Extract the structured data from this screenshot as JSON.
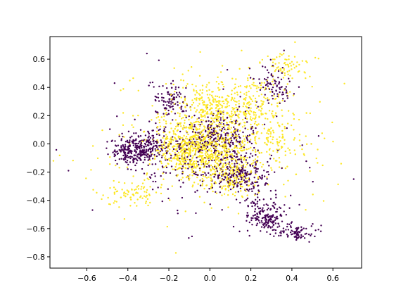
{
  "chart_data": {
    "type": "scatter",
    "title": "",
    "xlabel": "",
    "ylabel": "",
    "xlim": [
      -0.78,
      0.74
    ],
    "ylim": [
      -0.88,
      0.76
    ],
    "xticks": [
      -0.6,
      -0.4,
      -0.2,
      0.0,
      0.2,
      0.4,
      0.6
    ],
    "yticks": [
      -0.8,
      -0.6,
      -0.4,
      -0.2,
      0.0,
      0.2,
      0.4,
      0.6
    ],
    "xtick_labels": [
      "−0.6",
      "−0.4",
      "−0.2",
      "0.0",
      "0.2",
      "0.4",
      "0.6"
    ],
    "ytick_labels": [
      "−0.8",
      "−0.6",
      "−0.4",
      "−0.2",
      "0.0",
      "0.2",
      "0.4",
      "0.6"
    ],
    "grid": false,
    "legend": false,
    "colors": {
      "purple": "#440154",
      "yellow": "#fde725",
      "axis": "#000000",
      "background": "#ffffff"
    },
    "point_count_by_color": {
      "purple": 1460,
      "yellow": 1860
    },
    "series": [
      {
        "color": "#440154",
        "clusters": [
          {
            "center": [
              -0.37,
              -0.05
            ],
            "spread": [
              0.06,
              0.05
            ],
            "count": 240
          },
          {
            "center": [
              -0.28,
              0.0
            ],
            "spread": [
              0.05,
              0.06
            ],
            "count": 100
          },
          {
            "center": [
              -0.2,
              0.3
            ],
            "spread": [
              0.04,
              0.06
            ],
            "count": 90
          },
          {
            "center": [
              0.05,
              0.05
            ],
            "spread": [
              0.08,
              0.08
            ],
            "count": 200
          },
          {
            "center": [
              0.15,
              -0.22
            ],
            "spread": [
              0.08,
              0.07
            ],
            "count": 220
          },
          {
            "center": [
              0.28,
              -0.52
            ],
            "spread": [
              0.05,
              0.06
            ],
            "count": 180
          },
          {
            "center": [
              0.43,
              -0.63
            ],
            "spread": [
              0.05,
              0.03
            ],
            "count": 80
          },
          {
            "center": [
              0.32,
              0.42
            ],
            "spread": [
              0.05,
              0.08
            ],
            "count": 80
          },
          {
            "center": [
              -0.05,
              -0.1
            ],
            "spread": [
              0.14,
              0.15
            ],
            "count": 190
          },
          {
            "center": [
              0.0,
              0.0
            ],
            "spread": [
              0.3,
              0.3
            ],
            "count": 80
          }
        ]
      },
      {
        "color": "#fde725",
        "clusters": [
          {
            "center": [
              -0.02,
              -0.05
            ],
            "spread": [
              0.1,
              0.09
            ],
            "count": 560
          },
          {
            "center": [
              0.0,
              0.25
            ],
            "spread": [
              0.09,
              0.1
            ],
            "count": 300
          },
          {
            "center": [
              -0.15,
              0.0
            ],
            "spread": [
              0.07,
              0.1
            ],
            "count": 180
          },
          {
            "center": [
              0.23,
              0.27
            ],
            "spread": [
              0.07,
              0.1
            ],
            "count": 160
          },
          {
            "center": [
              0.38,
              0.55
            ],
            "spread": [
              0.05,
              0.06
            ],
            "count": 70
          },
          {
            "center": [
              -0.38,
              -0.35
            ],
            "spread": [
              0.07,
              0.04
            ],
            "count": 80
          },
          {
            "center": [
              0.1,
              -0.25
            ],
            "spread": [
              0.07,
              0.06
            ],
            "count": 160
          },
          {
            "center": [
              0.3,
              0.0
            ],
            "spread": [
              0.1,
              0.09
            ],
            "count": 110
          },
          {
            "center": [
              0.0,
              0.0
            ],
            "spread": [
              0.3,
              0.25
            ],
            "count": 240
          }
        ]
      }
    ]
  }
}
